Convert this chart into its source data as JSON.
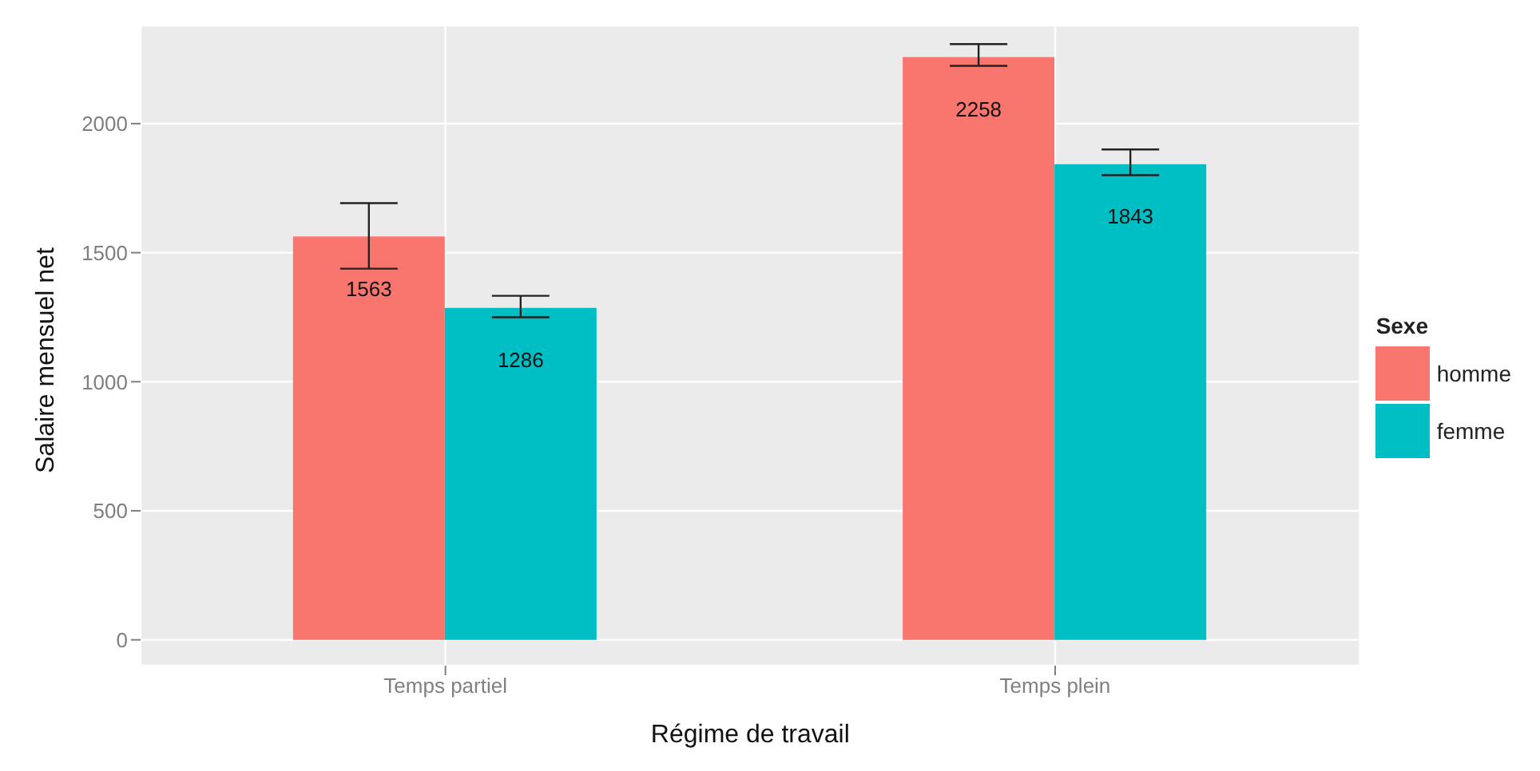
{
  "chart_data": {
    "type": "bar",
    "xlabel": "Régime de travail",
    "ylabel": "Salaire mensuel net",
    "legend_title": "Sexe",
    "categories": [
      "Temps partiel",
      "Temps plein"
    ],
    "series": [
      {
        "name": "homme",
        "color": "#f8766d",
        "values": [
          1563,
          2258
        ],
        "errors": [
          [
            1438,
            1692
          ],
          [
            2224,
            2308
          ]
        ]
      },
      {
        "name": "femme",
        "color": "#00bfc4",
        "values": [
          1286,
          1843
        ],
        "errors": [
          [
            1250,
            1333
          ],
          [
            1800,
            1900
          ]
        ]
      }
    ],
    "ylim": [
      -100,
      2380
    ],
    "yticks": [
      0,
      500,
      1000,
      1500,
      2000
    ],
    "grid": true,
    "legend": "right",
    "data_labels": true
  }
}
